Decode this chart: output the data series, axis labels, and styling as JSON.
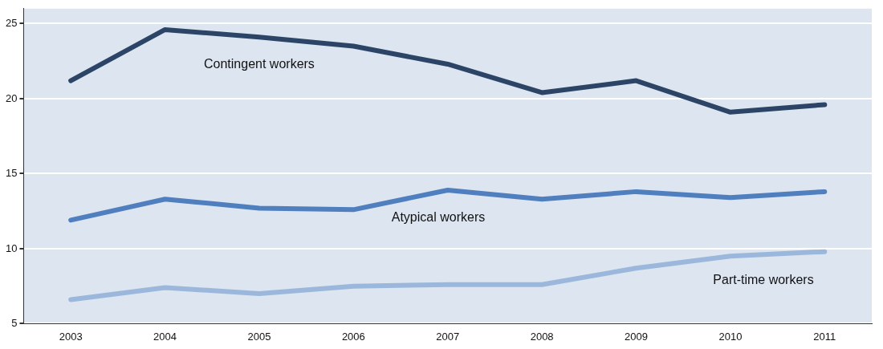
{
  "chart_data": {
    "type": "line",
    "categories": [
      "2003",
      "2004",
      "2005",
      "2006",
      "2007",
      "2008",
      "2009",
      "2010",
      "2011"
    ],
    "series": [
      {
        "name": "Contingent workers",
        "color": "#2c4566",
        "values": [
          21.2,
          24.6,
          24.1,
          23.5,
          22.3,
          20.4,
          21.2,
          19.1,
          19.6
        ]
      },
      {
        "name": "Atypical workers",
        "color": "#4f7fbf",
        "values": [
          11.9,
          13.3,
          12.7,
          12.6,
          13.9,
          13.3,
          13.8,
          13.4,
          13.8
        ]
      },
      {
        "name": "Part-time workers",
        "color": "#9bb8dc",
        "values": [
          6.6,
          7.4,
          7.0,
          7.5,
          7.6,
          7.6,
          8.7,
          9.5,
          9.8
        ]
      }
    ],
    "ylim": [
      5,
      26
    ],
    "yticks": [
      5,
      10,
      15,
      20,
      25
    ],
    "grid": "y",
    "legend": false,
    "marker": "none",
    "line_style": "solid"
  }
}
